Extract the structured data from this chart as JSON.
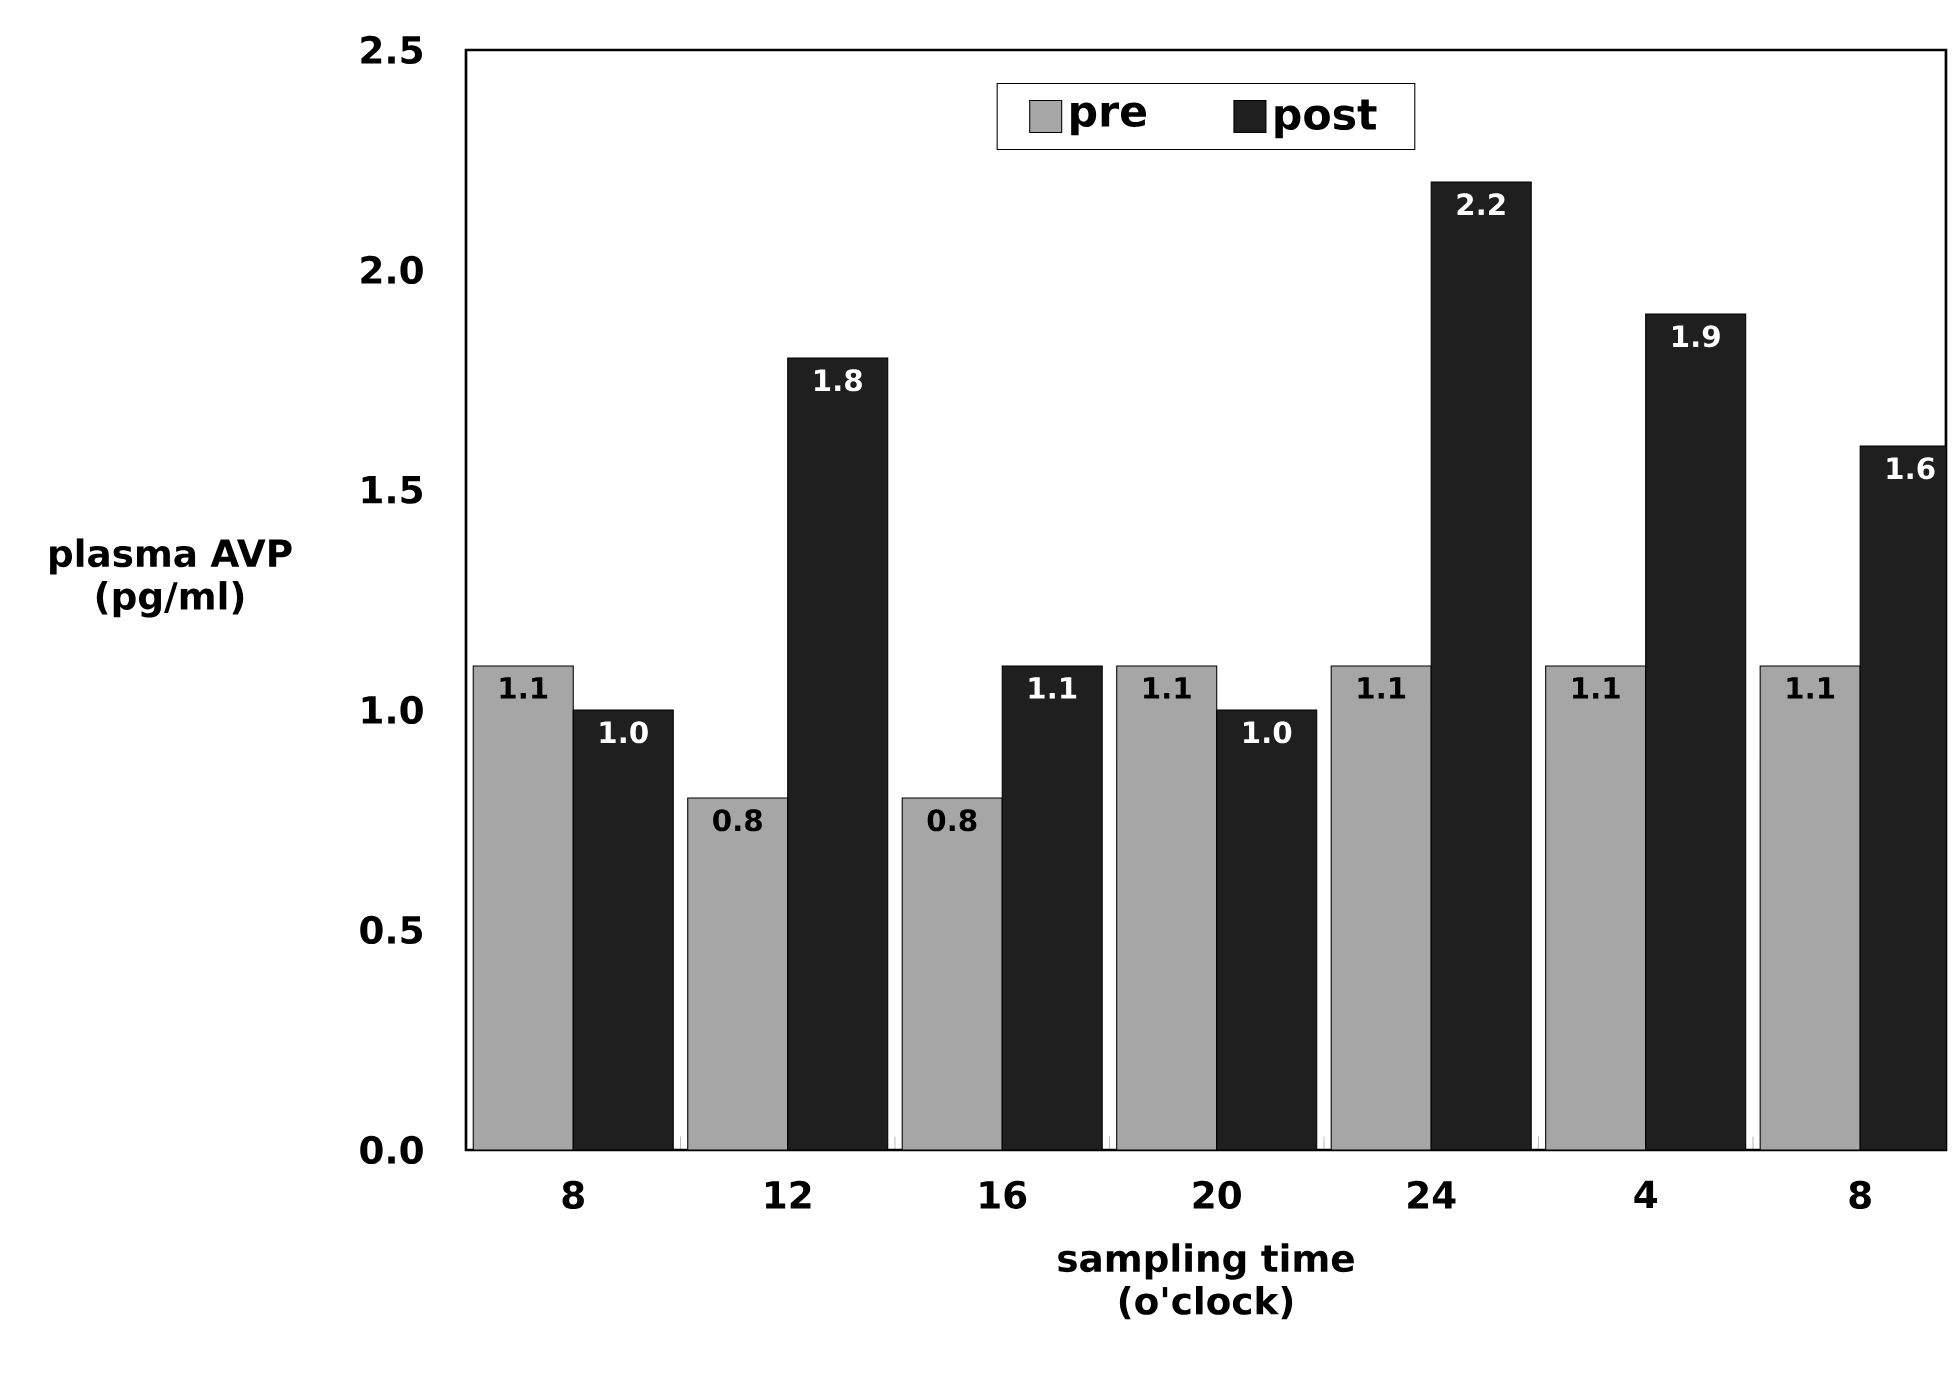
{
  "chart_data": {
    "type": "bar",
    "xlabel": "sampling time (o'clock)",
    "ylabel": "plasma AVP (pg/ml)",
    "categories": [
      "8",
      "12",
      "16",
      "20",
      "24",
      "4",
      "8"
    ],
    "series": [
      {
        "name": "pre",
        "color": "#a6a6a6",
        "values": [
          1.1,
          0.8,
          0.8,
          1.1,
          1.1,
          1.1,
          1.1
        ],
        "value_labels": [
          "1.1",
          "0.8",
          "0.8",
          "1.1",
          "1.1",
          "1.1",
          "1.1"
        ]
      },
      {
        "name": "post",
        "color": "#1f1f1f",
        "values": [
          1.0,
          1.8,
          1.1,
          1.0,
          2.2,
          1.9,
          1.6
        ],
        "value_labels": [
          "1.0",
          "1.8",
          "1.1",
          "1.0",
          "2.2",
          "1.9",
          "1.6"
        ]
      }
    ],
    "ylim": [
      0,
      2.5
    ],
    "yticks": [
      {
        "value": 0,
        "label": "0.0"
      },
      {
        "value": 0.5,
        "label": "0.5"
      },
      {
        "value": 1,
        "label": "1.0"
      },
      {
        "value": 1.5,
        "label": "1.5"
      },
      {
        "value": 2,
        "label": "2.0"
      },
      {
        "value": 2.5,
        "label": "2.5"
      }
    ],
    "legend": "top",
    "grid": false
  }
}
